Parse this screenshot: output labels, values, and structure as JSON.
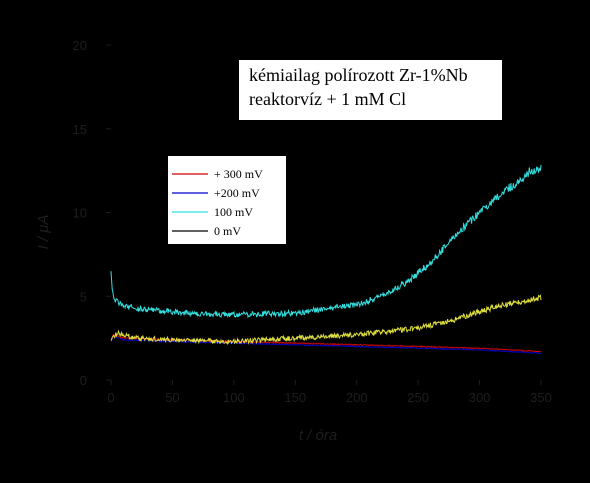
{
  "chart_data": {
    "type": "line",
    "title": [
      "kémiailag polírozott Zr-1%Nb",
      "reaktorvíz + 1 mM Cl"
    ],
    "xlabel": "t / óra",
    "ylabel": "I / μA",
    "xlim": [
      0,
      350
    ],
    "ylim": [
      0,
      20
    ],
    "xticks": [
      0,
      50,
      100,
      150,
      200,
      250,
      300,
      350
    ],
    "yticks": [
      0,
      5,
      10,
      15,
      20
    ],
    "legend_position": "upper-left",
    "series": [
      {
        "name": "+ 300 mV",
        "color": "#cc0000",
        "x": [
          0,
          2,
          10,
          50,
          100,
          150,
          200,
          250,
          300,
          350
        ],
        "y": [
          2.4,
          2.7,
          2.5,
          2.4,
          2.3,
          2.2,
          2.1,
          2.0,
          1.9,
          1.7
        ]
      },
      {
        "name": "+200 mV",
        "color": "#0000cc",
        "x": [
          0,
          2,
          10,
          50,
          100,
          150,
          200,
          250,
          300,
          350
        ],
        "y": [
          2.3,
          2.6,
          2.4,
          2.3,
          2.2,
          2.1,
          2.0,
          1.9,
          1.8,
          1.6
        ]
      },
      {
        "name": "100 mV",
        "color": "#33e0e0",
        "x": [
          0,
          1,
          3,
          10,
          30,
          60,
          100,
          150,
          200,
          220,
          240,
          260,
          280,
          300,
          320,
          340,
          350
        ],
        "y": [
          6.7,
          5.4,
          4.8,
          4.4,
          4.2,
          4.0,
          3.9,
          4.0,
          4.5,
          5.0,
          5.8,
          7.0,
          8.6,
          10.0,
          11.2,
          12.4,
          12.6
        ]
      },
      {
        "name": "0 mV",
        "color": "#000000",
        "x": [
          0,
          2,
          10,
          50,
          100,
          150,
          200,
          250,
          300,
          350
        ],
        "y": [
          2.4,
          2.7,
          2.5,
          2.4,
          2.3,
          2.2,
          2.1,
          2.0,
          1.9,
          1.7
        ]
      },
      {
        "name": "",
        "color": "#dede40",
        "x": [
          0,
          5,
          20,
          50,
          100,
          150,
          200,
          250,
          280,
          300,
          320,
          335,
          350
        ],
        "y": [
          2.5,
          2.8,
          2.5,
          2.4,
          2.3,
          2.5,
          2.7,
          3.1,
          3.6,
          4.1,
          4.5,
          4.7,
          4.9
        ]
      }
    ]
  }
}
